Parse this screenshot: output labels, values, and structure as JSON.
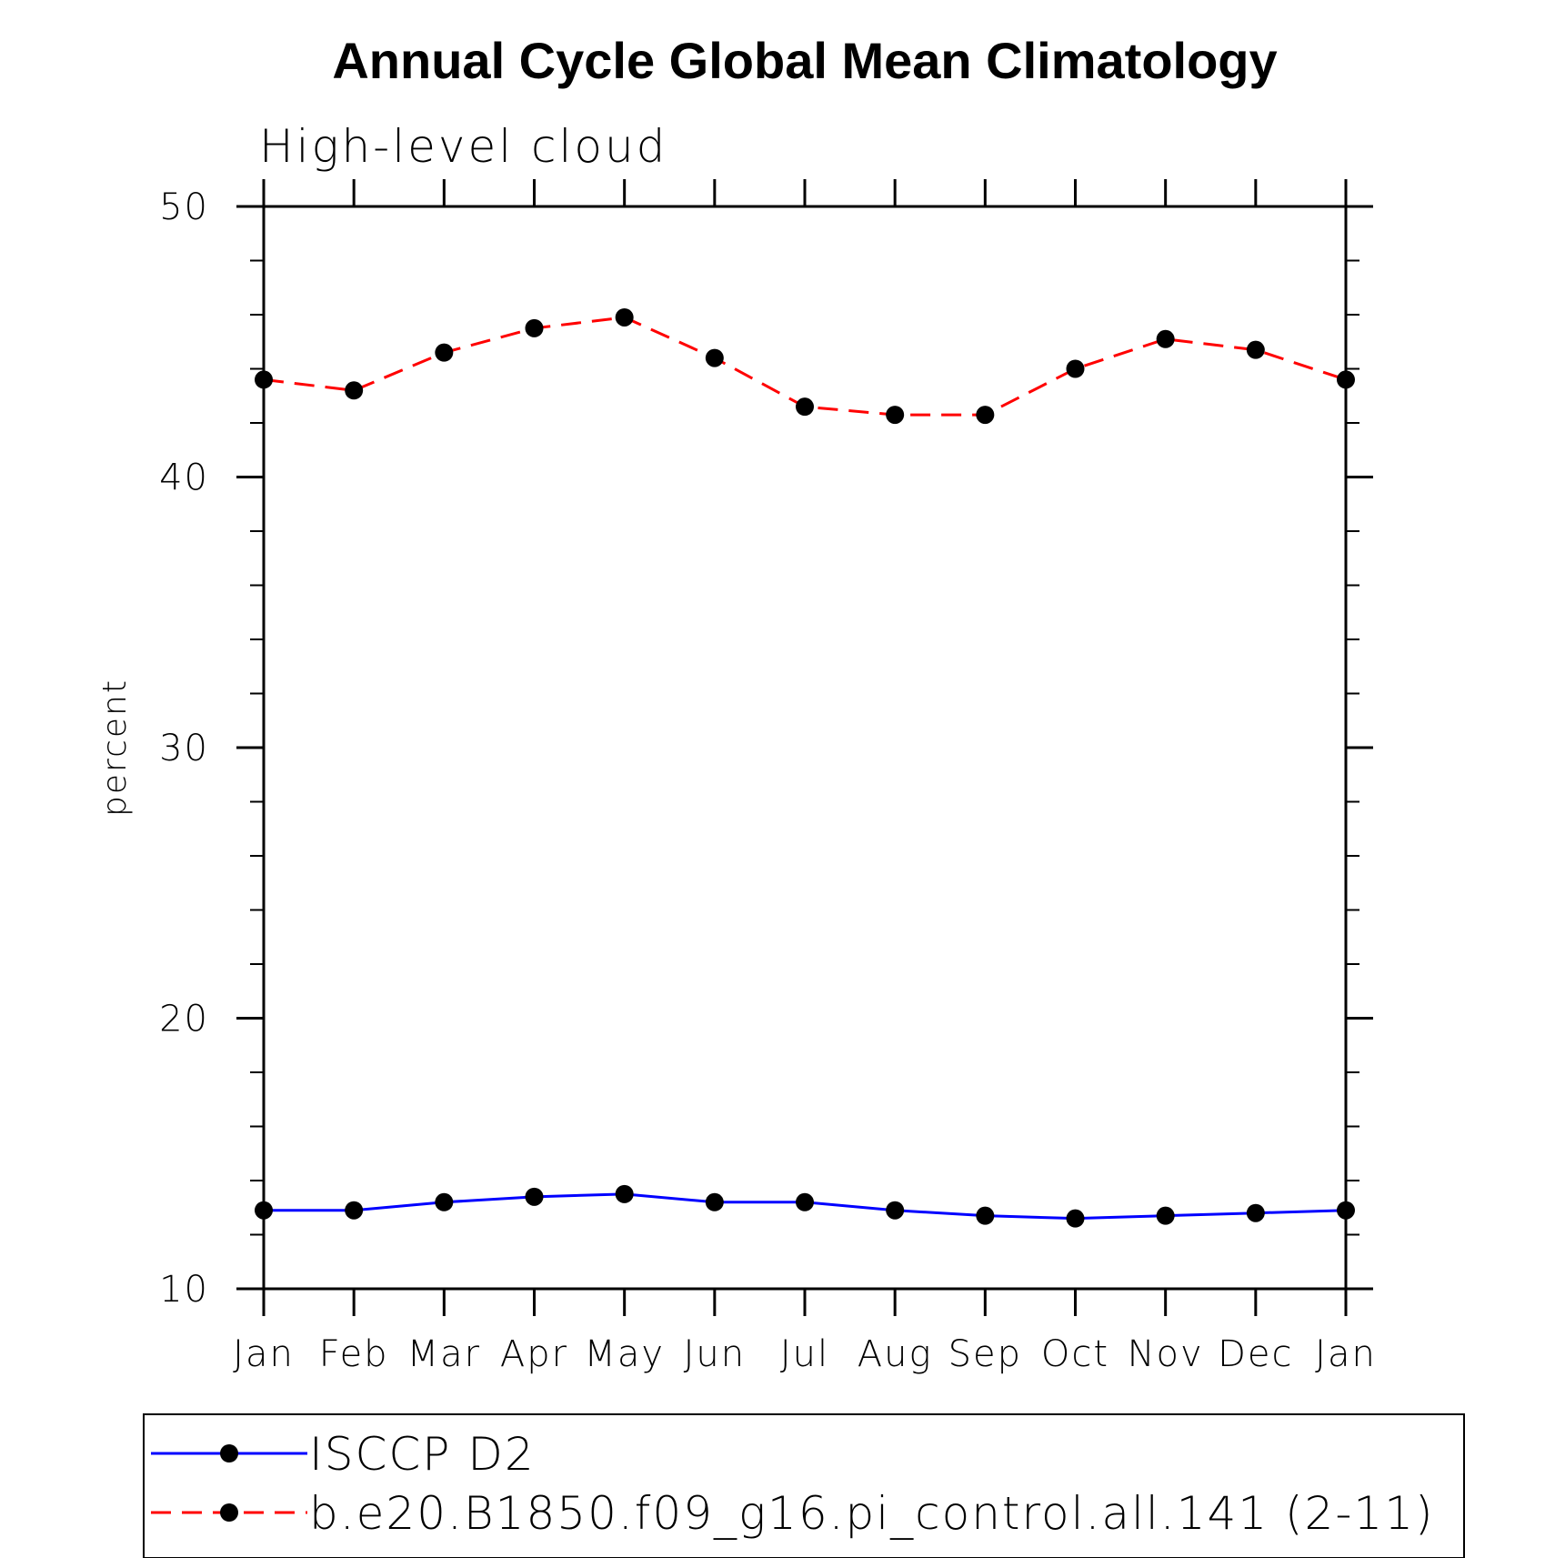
{
  "chart_data": {
    "type": "line",
    "title": "Annual Cycle Global Mean Climatology",
    "subtitle": "High-level cloud",
    "xlabel": "",
    "ylabel": "percent",
    "categories": [
      "Jan",
      "Feb",
      "Mar",
      "Apr",
      "May",
      "Jun",
      "Jul",
      "Aug",
      "Sep",
      "Oct",
      "Nov",
      "Dec",
      "Jan"
    ],
    "ylim": [
      10,
      50
    ],
    "yticks": [
      10,
      20,
      30,
      40,
      50
    ],
    "yticks_labels": [
      "10",
      "20",
      "30",
      "40",
      "50"
    ],
    "yminor_step": 2,
    "grid": false,
    "legend_position": "bottom",
    "series": [
      {
        "name": "ISCCP D2",
        "color": "#0000ff",
        "dash": "solid",
        "marker": "filled-circle",
        "values": [
          12.9,
          12.9,
          13.2,
          13.4,
          13.5,
          13.2,
          13.2,
          12.9,
          12.7,
          12.6,
          12.7,
          12.8,
          12.9
        ]
      },
      {
        "name": "b.e20.B1850.f09_g16.pi_control.all.141 (2-11)",
        "color": "#ff0000",
        "dash": "dashed",
        "marker": "filled-circle",
        "values": [
          43.6,
          43.2,
          44.6,
          45.5,
          45.9,
          44.4,
          42.6,
          42.3,
          42.3,
          44.0,
          45.1,
          44.7,
          43.6
        ]
      }
    ]
  }
}
